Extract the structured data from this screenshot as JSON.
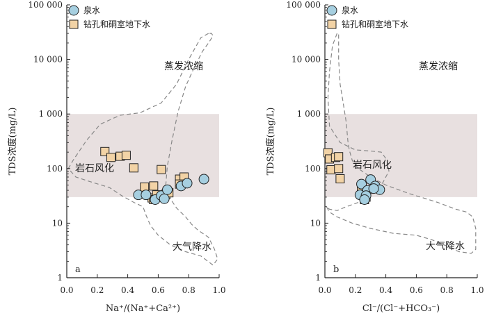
{
  "chart_data": [
    {
      "type": "scatter",
      "panel_label": "a",
      "xlabel": "Na⁺/(Na⁺+Ca²⁺)",
      "ylabel": "TDS浓度(mg/L)",
      "xlim": [
        0.0,
        1.0
      ],
      "ylim": [
        1,
        100000
      ],
      "yscale": "log",
      "x_ticks": [
        "0.0",
        "0.2",
        "0.4",
        "0.6",
        "0.8",
        "1.0"
      ],
      "y_ticks": [
        "1",
        "10",
        "100",
        "1 000",
        "10 000",
        "100 000"
      ],
      "grid": false,
      "legend_position": "top-left",
      "annotations": [
        "蒸发浓缩",
        "岩石风化",
        "大气降水"
      ],
      "shaded_band_tds": [
        30,
        1000
      ],
      "envelope": [
        [
          0.93,
          30000
        ],
        [
          0.88,
          25000
        ],
        [
          0.8,
          10000
        ],
        [
          0.72,
          3500
        ],
        [
          0.62,
          1600
        ],
        [
          0.48,
          1050
        ],
        [
          0.35,
          950
        ],
        [
          0.22,
          650
        ],
        [
          0.13,
          330
        ],
        [
          0.04,
          140
        ],
        [
          0.01,
          100
        ],
        [
          0.06,
          70
        ],
        [
          0.15,
          58
        ],
        [
          0.28,
          45
        ],
        [
          0.36,
          32
        ],
        [
          0.44,
          24
        ],
        [
          0.5,
          20
        ],
        [
          0.52,
          14
        ],
        [
          0.55,
          9
        ],
        [
          0.6,
          6
        ],
        [
          0.68,
          4
        ],
        [
          0.78,
          3
        ],
        [
          0.88,
          2.5
        ],
        [
          0.96,
          1.7
        ],
        [
          0.99,
          2.2
        ],
        [
          0.97,
          3.3
        ],
        [
          0.93,
          5.5
        ],
        [
          0.86,
          7.5
        ],
        [
          0.82,
          9.5
        ],
        [
          0.78,
          13
        ],
        [
          0.72,
          19
        ],
        [
          0.68,
          28
        ],
        [
          0.65,
          50
        ],
        [
          0.66,
          110
        ],
        [
          0.69,
          320
        ],
        [
          0.73,
          1100
        ],
        [
          0.78,
          3200
        ],
        [
          0.83,
          6500
        ],
        [
          0.89,
          14000
        ],
        [
          0.93,
          20000
        ],
        [
          0.96,
          27000
        ],
        [
          0.95,
          30000
        ]
      ],
      "series": [
        {
          "name": "泉水",
          "marker": "circle",
          "color": "#a6cfe0",
          "points": [
            [
              0.47,
              33
            ],
            [
              0.52,
              33
            ],
            [
              0.58,
              27
            ],
            [
              0.62,
              32
            ],
            [
              0.64,
              28
            ],
            [
              0.66,
              41
            ],
            [
              0.75,
              48
            ],
            [
              0.79,
              54
            ],
            [
              0.9,
              64
            ]
          ]
        },
        {
          "name": "钻孔和硐室地下水",
          "marker": "square",
          "color": "#f2d3a6",
          "points": [
            [
              0.25,
              205
            ],
            [
              0.29,
              160
            ],
            [
              0.35,
              168
            ],
            [
              0.39,
              175
            ],
            [
              0.44,
              103
            ],
            [
              0.51,
              46
            ],
            [
              0.57,
              48
            ],
            [
              0.62,
              96
            ],
            [
              0.74,
              64
            ],
            [
              0.77,
              70
            ],
            [
              0.56,
              29
            ],
            [
              0.59,
              33
            ],
            [
              0.65,
              34
            ],
            [
              0.67,
              36
            ],
            [
              0.74,
              52
            ],
            [
              0.57,
              27
            ]
          ]
        }
      ]
    },
    {
      "type": "scatter",
      "panel_label": "b",
      "xlabel": "Cl⁻/(Cl⁻+HCO₃⁻)",
      "ylabel": "TDS浓度(mg/L)",
      "xlim": [
        0.0,
        1.0
      ],
      "ylim": [
        1,
        100000
      ],
      "yscale": "log",
      "x_ticks": [
        "0.0",
        "0.2",
        "0.4",
        "0.6",
        "0.8",
        "1.0"
      ],
      "y_ticks": [
        "1",
        "10",
        "100",
        "1 000",
        "10 000",
        "100 000"
      ],
      "grid": false,
      "legend_position": "top-left",
      "annotations": [
        "蒸发浓缩",
        "岩石风化",
        "大气降水"
      ],
      "shaded_band_tds": [
        30,
        1000
      ],
      "envelope": [
        [
          0.08,
          30000
        ],
        [
          0.05,
          18000
        ],
        [
          0.03,
          6000
        ],
        [
          0.02,
          2000
        ],
        [
          0.03,
          600
        ],
        [
          0.1,
          300
        ],
        [
          0.2,
          220
        ],
        [
          0.3,
          210
        ],
        [
          0.37,
          200
        ],
        [
          0.41,
          140
        ],
        [
          0.42,
          90
        ],
        [
          0.38,
          55
        ],
        [
          0.3,
          32
        ],
        [
          0.22,
          24
        ],
        [
          0.14,
          20
        ],
        [
          0.08,
          17
        ],
        [
          0.03,
          18
        ],
        [
          0.01,
          20
        ],
        [
          0.03,
          16
        ],
        [
          0.08,
          13
        ],
        [
          0.18,
          10
        ],
        [
          0.3,
          8
        ],
        [
          0.45,
          6.5
        ],
        [
          0.6,
          6
        ],
        [
          0.7,
          5
        ],
        [
          0.8,
          3.8
        ],
        [
          0.88,
          3
        ],
        [
          0.96,
          2.8
        ],
        [
          0.99,
          3.3
        ],
        [
          0.99,
          8.0
        ],
        [
          0.97,
          13
        ],
        [
          0.93,
          16
        ],
        [
          0.86,
          18
        ],
        [
          0.74,
          24
        ],
        [
          0.55,
          35
        ],
        [
          0.4,
          50
        ],
        [
          0.3,
          70
        ],
        [
          0.22,
          100
        ],
        [
          0.18,
          140
        ],
        [
          0.16,
          220
        ],
        [
          0.15,
          330
        ],
        [
          0.14,
          700
        ],
        [
          0.12,
          1600
        ],
        [
          0.1,
          3500
        ],
        [
          0.09,
          10000
        ],
        [
          0.09,
          30000
        ]
      ],
      "series": [
        {
          "name": "泉水",
          "marker": "circle",
          "color": "#a6cfe0",
          "points": [
            [
              0.24,
              52
            ],
            [
              0.28,
              40
            ],
            [
              0.3,
              63
            ],
            [
              0.33,
              48
            ],
            [
              0.36,
              41
            ],
            [
              0.23,
              33
            ],
            [
              0.27,
              32
            ],
            [
              0.26,
              27
            ],
            [
              0.32,
              43
            ]
          ]
        },
        {
          "name": "钻孔和硐室地下水",
          "marker": "square",
          "color": "#f2d3a6",
          "points": [
            [
              0.02,
              195
            ],
            [
              0.03,
              150
            ],
            [
              0.07,
              160
            ],
            [
              0.09,
              165
            ],
            [
              0.04,
              95
            ],
            [
              0.09,
              100
            ],
            [
              0.1,
              65
            ],
            [
              0.24,
              44
            ],
            [
              0.27,
              30
            ],
            [
              0.26,
              27
            ]
          ]
        }
      ]
    }
  ]
}
